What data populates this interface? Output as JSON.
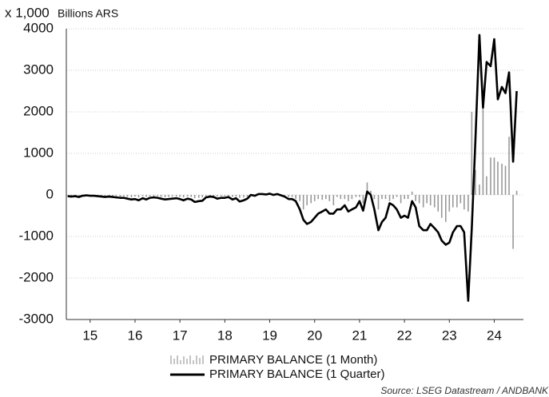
{
  "chart_data": {
    "type": "combo",
    "y_unit": "x 1,000",
    "y_label": "Billions ARS",
    "source": "Source: LSEG Datastream / ANDBANK",
    "xlim": [
      2014.97,
      2025.15
    ],
    "xticks": [
      {
        "value": 2015.5,
        "label": "15"
      },
      {
        "value": 2016.5,
        "label": "16"
      },
      {
        "value": 2017.5,
        "label": "17"
      },
      {
        "value": 2018.5,
        "label": "18"
      },
      {
        "value": 2019.5,
        "label": "19"
      },
      {
        "value": 2020.5,
        "label": "20"
      },
      {
        "value": 2021.5,
        "label": "21"
      },
      {
        "value": 2022.5,
        "label": "22"
      },
      {
        "value": 2023.5,
        "label": "23"
      },
      {
        "value": 2024.5,
        "label": "24"
      }
    ],
    "ylim": [
      -3000,
      4000
    ],
    "yticks": [
      -3000,
      -2000,
      -1000,
      0,
      1000,
      2000,
      3000,
      4000
    ],
    "grid": true,
    "x": [
      2015.0,
      2015.08,
      2015.17,
      2015.25,
      2015.33,
      2015.42,
      2015.5,
      2015.58,
      2015.67,
      2015.75,
      2015.83,
      2015.92,
      2016.0,
      2016.08,
      2016.17,
      2016.25,
      2016.33,
      2016.42,
      2016.5,
      2016.58,
      2016.67,
      2016.75,
      2016.83,
      2016.92,
      2017.0,
      2017.08,
      2017.17,
      2017.25,
      2017.33,
      2017.42,
      2017.5,
      2017.58,
      2017.67,
      2017.75,
      2017.83,
      2017.92,
      2018.0,
      2018.08,
      2018.17,
      2018.25,
      2018.33,
      2018.42,
      2018.5,
      2018.58,
      2018.67,
      2018.75,
      2018.83,
      2018.92,
      2019.0,
      2019.08,
      2019.17,
      2019.25,
      2019.33,
      2019.42,
      2019.5,
      2019.58,
      2019.67,
      2019.75,
      2019.83,
      2019.92,
      2020.0,
      2020.08,
      2020.17,
      2020.25,
      2020.33,
      2020.42,
      2020.5,
      2020.58,
      2020.67,
      2020.75,
      2020.83,
      2020.92,
      2021.0,
      2021.08,
      2021.17,
      2021.25,
      2021.33,
      2021.42,
      2021.5,
      2021.58,
      2021.67,
      2021.75,
      2021.83,
      2021.92,
      2022.0,
      2022.08,
      2022.17,
      2022.25,
      2022.33,
      2022.42,
      2022.5,
      2022.58,
      2022.67,
      2022.75,
      2022.83,
      2022.92,
      2023.0,
      2023.08,
      2023.17,
      2023.25,
      2023.33,
      2023.42,
      2023.5,
      2023.58,
      2023.67,
      2023.75,
      2023.83,
      2023.92,
      2024.0,
      2024.08,
      2024.17,
      2024.25,
      2024.33,
      2024.42,
      2024.5,
      2024.58,
      2024.67,
      2024.75,
      2024.83,
      2024.92,
      2025.0
    ],
    "series": [
      {
        "name": "PRIMARY BALANCE (1 Month)",
        "type": "bar",
        "color": "#999999",
        "values": [
          -10,
          -20,
          -10,
          -20,
          0,
          10,
          -10,
          -10,
          -20,
          -20,
          -30,
          -20,
          -30,
          -30,
          -40,
          -30,
          -50,
          -60,
          -40,
          -60,
          -30,
          -50,
          -30,
          -40,
          -30,
          -50,
          -60,
          -50,
          -40,
          -40,
          -50,
          -60,
          -40,
          -50,
          -80,
          -70,
          -60,
          -30,
          -20,
          -30,
          -40,
          -30,
          -30,
          -20,
          -50,
          -40,
          -70,
          -60,
          -40,
          10,
          -10,
          20,
          10,
          10,
          20,
          10,
          10,
          -10,
          -30,
          -50,
          -50,
          -100,
          -150,
          -350,
          -250,
          -200,
          -150,
          -100,
          -120,
          -100,
          -150,
          -250,
          -50,
          -100,
          -100,
          -150,
          -100,
          -50,
          -50,
          -200,
          300,
          100,
          -100,
          -350,
          -100,
          -100,
          -150,
          -100,
          -50,
          -200,
          -100,
          -100,
          80,
          -150,
          -200,
          -300,
          -200,
          -250,
          -300,
          -400,
          -550,
          -650,
          -400,
          -300,
          -300,
          -200,
          -350,
          -400,
          2000,
          600,
          250,
          2300,
          450,
          900,
          900,
          800,
          750,
          700,
          1400,
          -1300,
          100
        ]
      },
      {
        "name": "PRIMARY BALANCE (1 Quarter)",
        "type": "line",
        "color": "#000000",
        "values": [
          -30,
          -40,
          -30,
          -50,
          -20,
          -10,
          -20,
          -20,
          -30,
          -40,
          -50,
          -40,
          -50,
          -60,
          -70,
          -70,
          -90,
          -110,
          -100,
          -130,
          -80,
          -110,
          -70,
          -60,
          -70,
          -90,
          -110,
          -100,
          -90,
          -80,
          -100,
          -130,
          -90,
          -110,
          -170,
          -150,
          -140,
          -60,
          -40,
          -50,
          -90,
          -70,
          -70,
          -50,
          -110,
          -80,
          -160,
          -130,
          -90,
          0,
          -20,
          20,
          20,
          10,
          30,
          0,
          20,
          -10,
          -40,
          -100,
          -100,
          -150,
          -350,
          -600,
          -700,
          -650,
          -550,
          -450,
          -400,
          -350,
          -450,
          -450,
          -350,
          -350,
          -250,
          -400,
          -350,
          -300,
          -150,
          -380,
          80,
          0,
          -350,
          -850,
          -650,
          -550,
          -200,
          -250,
          -350,
          -550,
          -500,
          -550,
          -150,
          -300,
          -750,
          -850,
          -850,
          -700,
          -800,
          -900,
          -1100,
          -1200,
          -1150,
          -900,
          -750,
          -750,
          -900,
          -2550,
          -800,
          1300,
          3850,
          2100,
          3200,
          3100,
          3750,
          2300,
          2600,
          2450,
          2950,
          800,
          2500
        ]
      }
    ]
  }
}
